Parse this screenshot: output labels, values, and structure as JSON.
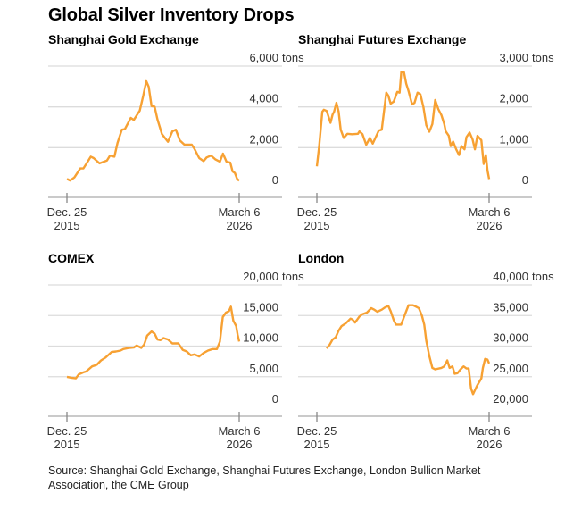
{
  "title": "Global Silver Inventory Drops",
  "source": "Source: Shanghai Gold Exchange, Shanghai Futures Exchange, London Bullion Market Association, the CME Group",
  "line_color": "#f7a133",
  "chart_data": [
    {
      "type": "line",
      "title": "Shanghai Gold Exchange",
      "unit": "tons",
      "x_tick_labels": [
        [
          "Dec. 25",
          "2015"
        ],
        [
          "March 6",
          "2026"
        ]
      ],
      "xlim": [
        "2015-12-25",
        "2026-03-06"
      ],
      "ylim": [
        0,
        6000
      ],
      "y_ticks": [
        0,
        2000,
        4000,
        6000
      ],
      "y_tick_labels": [
        "0",
        "2,000",
        "4,000",
        "6,000"
      ],
      "grid": true,
      "points": [
        [
          2015.98,
          470
        ],
        [
          2016.16,
          390
        ],
        [
          2016.42,
          540
        ],
        [
          2016.77,
          980
        ],
        [
          2016.95,
          980
        ],
        [
          2017.12,
          1200
        ],
        [
          2017.39,
          1560
        ],
        [
          2017.56,
          1490
        ],
        [
          2017.91,
          1230
        ],
        [
          2018.35,
          1370
        ],
        [
          2018.53,
          1610
        ],
        [
          2018.79,
          1560
        ],
        [
          2018.97,
          2220
        ],
        [
          2019.23,
          2880
        ],
        [
          2019.41,
          2910
        ],
        [
          2019.76,
          3460
        ],
        [
          2019.94,
          3360
        ],
        [
          2020.29,
          3820
        ],
        [
          2020.5,
          4550
        ],
        [
          2020.68,
          5260
        ],
        [
          2020.82,
          4990
        ],
        [
          2020.99,
          4040
        ],
        [
          2021.17,
          4010
        ],
        [
          2021.34,
          3390
        ],
        [
          2021.61,
          2660
        ],
        [
          2021.96,
          2290
        ],
        [
          2022.22,
          2800
        ],
        [
          2022.43,
          2880
        ],
        [
          2022.66,
          2360
        ],
        [
          2022.93,
          2150
        ],
        [
          2023.37,
          2150
        ],
        [
          2023.54,
          1930
        ],
        [
          2023.81,
          1490
        ],
        [
          2024.07,
          1340
        ],
        [
          2024.25,
          1520
        ],
        [
          2024.51,
          1610
        ],
        [
          2024.78,
          1420
        ],
        [
          2025.04,
          1310
        ],
        [
          2025.22,
          1710
        ],
        [
          2025.43,
          1310
        ],
        [
          2025.65,
          1270
        ],
        [
          2025.79,
          830
        ],
        [
          2025.92,
          760
        ],
        [
          2026.06,
          470
        ],
        [
          2026.18,
          380
        ]
      ]
    },
    {
      "type": "line",
      "title": "Shanghai Futures Exchange",
      "unit": "tons",
      "x_tick_labels": [
        [
          "Dec. 25",
          "2015"
        ],
        [
          "March 6",
          "2026"
        ]
      ],
      "xlim": [
        "2015-12-25",
        "2026-03-06"
      ],
      "ylim": [
        0,
        3000
      ],
      "y_ticks": [
        0,
        1000,
        2000,
        3000
      ],
      "y_tick_labels": [
        "0",
        "1,000",
        "2,000",
        "3,000"
      ],
      "grid": true,
      "points": [
        [
          2015.98,
          540
        ],
        [
          2016.12,
          1040
        ],
        [
          2016.3,
          1880
        ],
        [
          2016.39,
          1930
        ],
        [
          2016.56,
          1900
        ],
        [
          2016.79,
          1610
        ],
        [
          2016.91,
          1810
        ],
        [
          2017.0,
          1880
        ],
        [
          2017.14,
          2100
        ],
        [
          2017.27,
          1880
        ],
        [
          2017.39,
          1440
        ],
        [
          2017.57,
          1240
        ],
        [
          2017.79,
          1340
        ],
        [
          2018.06,
          1330
        ],
        [
          2018.41,
          1340
        ],
        [
          2018.5,
          1400
        ],
        [
          2018.68,
          1330
        ],
        [
          2018.9,
          1070
        ],
        [
          2019.12,
          1240
        ],
        [
          2019.29,
          1100
        ],
        [
          2019.47,
          1260
        ],
        [
          2019.64,
          1420
        ],
        [
          2019.82,
          1440
        ],
        [
          2020.09,
          2350
        ],
        [
          2020.21,
          2280
        ],
        [
          2020.35,
          2080
        ],
        [
          2020.53,
          2130
        ],
        [
          2020.74,
          2370
        ],
        [
          2020.88,
          2350
        ],
        [
          2020.98,
          2860
        ],
        [
          2021.14,
          2850
        ],
        [
          2021.27,
          2570
        ],
        [
          2021.41,
          2390
        ],
        [
          2021.62,
          2060
        ],
        [
          2021.76,
          2100
        ],
        [
          2021.94,
          2350
        ],
        [
          2022.11,
          2310
        ],
        [
          2022.29,
          1990
        ],
        [
          2022.46,
          1550
        ],
        [
          2022.64,
          1390
        ],
        [
          2022.82,
          1580
        ],
        [
          2022.99,
          2170
        ],
        [
          2023.17,
          1950
        ],
        [
          2023.35,
          1800
        ],
        [
          2023.52,
          1580
        ],
        [
          2023.61,
          1400
        ],
        [
          2023.79,
          1290
        ],
        [
          2023.91,
          1040
        ],
        [
          2024.05,
          1150
        ],
        [
          2024.23,
          960
        ],
        [
          2024.4,
          820
        ],
        [
          2024.54,
          1040
        ],
        [
          2024.72,
          960
        ],
        [
          2024.84,
          1260
        ],
        [
          2025.02,
          1370
        ],
        [
          2025.2,
          1200
        ],
        [
          2025.34,
          960
        ],
        [
          2025.49,
          1290
        ],
        [
          2025.72,
          1180
        ],
        [
          2025.86,
          600
        ],
        [
          2025.99,
          820
        ],
        [
          2026.08,
          450
        ],
        [
          2026.18,
          230
        ]
      ]
    },
    {
      "type": "line",
      "title": "COMEX",
      "unit": "tons",
      "x_tick_labels": [
        [
          "Dec. 25",
          "2015"
        ],
        [
          "March 6",
          "2026"
        ]
      ],
      "xlim": [
        "2015-12-25",
        "2026-03-06"
      ],
      "ylim": [
        0,
        20000
      ],
      "y_ticks": [
        0,
        5000,
        10000,
        15000,
        20000
      ],
      "y_tick_labels": [
        "0",
        "5,000",
        "10,000",
        "15,000",
        "20,000"
      ],
      "grid": true,
      "points": [
        [
          2015.98,
          4980
        ],
        [
          2016.24,
          4830
        ],
        [
          2016.51,
          4730
        ],
        [
          2016.68,
          5370
        ],
        [
          2016.95,
          5710
        ],
        [
          2017.12,
          5860
        ],
        [
          2017.47,
          6690
        ],
        [
          2017.74,
          6930
        ],
        [
          2018.0,
          7660
        ],
        [
          2018.27,
          8150
        ],
        [
          2018.62,
          9030
        ],
        [
          2018.88,
          9130
        ],
        [
          2019.15,
          9270
        ],
        [
          2019.32,
          9520
        ],
        [
          2019.67,
          9710
        ],
        [
          2019.94,
          9760
        ],
        [
          2020.11,
          10100
        ],
        [
          2020.38,
          9710
        ],
        [
          2020.55,
          10250
        ],
        [
          2020.73,
          11710
        ],
        [
          2020.99,
          12400
        ],
        [
          2021.17,
          12050
        ],
        [
          2021.34,
          11080
        ],
        [
          2021.52,
          10980
        ],
        [
          2021.7,
          11320
        ],
        [
          2021.96,
          11080
        ],
        [
          2022.22,
          10440
        ],
        [
          2022.58,
          10440
        ],
        [
          2022.84,
          9370
        ],
        [
          2023.07,
          9130
        ],
        [
          2023.31,
          8490
        ],
        [
          2023.54,
          8640
        ],
        [
          2023.81,
          8300
        ],
        [
          2024.07,
          8880
        ],
        [
          2024.33,
          9270
        ],
        [
          2024.6,
          9520
        ],
        [
          2024.86,
          9520
        ],
        [
          2025.04,
          10740
        ],
        [
          2025.21,
          14740
        ],
        [
          2025.39,
          15470
        ],
        [
          2025.57,
          15710
        ],
        [
          2025.69,
          16450
        ],
        [
          2025.83,
          14150
        ],
        [
          2026.0,
          13270
        ],
        [
          2026.09,
          11810
        ],
        [
          2026.18,
          10740
        ]
      ]
    },
    {
      "type": "line",
      "title": "London",
      "unit": "tons",
      "x_tick_labels": [
        [
          "Dec. 25",
          "2015"
        ],
        [
          "March 6",
          "2026"
        ]
      ],
      "xlim": [
        "2015-12-25",
        "2026-03-06"
      ],
      "ylim": [
        20000,
        40000
      ],
      "y_ticks": [
        20000,
        25000,
        30000,
        35000,
        40000
      ],
      "y_tick_labels": [
        "20,000",
        "25,000",
        "30,000",
        "35,000",
        "40,000"
      ],
      "grid": true,
      "points": [
        [
          2016.56,
          29610
        ],
        [
          2016.74,
          30250
        ],
        [
          2016.91,
          31080
        ],
        [
          2017.09,
          31420
        ],
        [
          2017.27,
          32540
        ],
        [
          2017.44,
          33270
        ],
        [
          2017.71,
          33760
        ],
        [
          2017.97,
          34490
        ],
        [
          2018.09,
          34350
        ],
        [
          2018.24,
          33860
        ],
        [
          2018.41,
          34490
        ],
        [
          2018.5,
          34840
        ],
        [
          2018.68,
          35230
        ],
        [
          2018.94,
          35470
        ],
        [
          2019.2,
          36200
        ],
        [
          2019.38,
          35960
        ],
        [
          2019.56,
          35620
        ],
        [
          2019.82,
          35960
        ],
        [
          2020.0,
          36300
        ],
        [
          2020.21,
          36590
        ],
        [
          2020.35,
          35710
        ],
        [
          2020.53,
          34250
        ],
        [
          2020.67,
          33520
        ],
        [
          2020.97,
          33520
        ],
        [
          2021.14,
          34740
        ],
        [
          2021.27,
          35710
        ],
        [
          2021.41,
          36690
        ],
        [
          2021.67,
          36690
        ],
        [
          2021.85,
          36450
        ],
        [
          2022.02,
          36200
        ],
        [
          2022.2,
          34980
        ],
        [
          2022.34,
          33520
        ],
        [
          2022.46,
          30830
        ],
        [
          2022.64,
          28390
        ],
        [
          2022.82,
          26440
        ],
        [
          2022.99,
          26200
        ],
        [
          2023.35,
          26440
        ],
        [
          2023.52,
          26690
        ],
        [
          2023.7,
          27660
        ],
        [
          2023.84,
          26440
        ],
        [
          2024.01,
          26690
        ],
        [
          2024.14,
          25470
        ],
        [
          2024.31,
          25570
        ],
        [
          2024.49,
          26200
        ],
        [
          2024.67,
          26690
        ],
        [
          2024.84,
          26340
        ],
        [
          2024.97,
          26340
        ],
        [
          2025.11,
          23030
        ],
        [
          2025.23,
          22150
        ],
        [
          2025.46,
          23510
        ],
        [
          2025.72,
          24730
        ],
        [
          2025.81,
          26440
        ],
        [
          2025.94,
          27910
        ],
        [
          2026.08,
          27810
        ],
        [
          2026.18,
          27170
        ]
      ]
    }
  ]
}
